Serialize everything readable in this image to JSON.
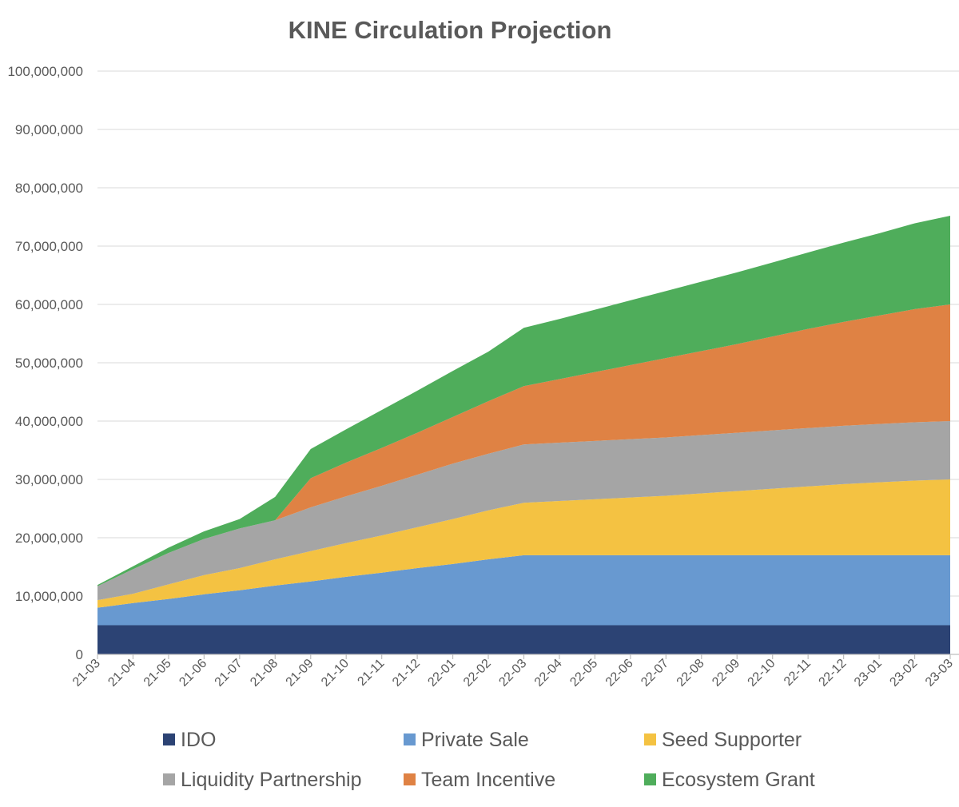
{
  "chart_data": {
    "type": "area",
    "stacked": true,
    "title": "KINE Circulation Projection",
    "xlabel": "",
    "ylabel": "",
    "ylim": [
      0,
      100000000
    ],
    "y_ticks": [
      0,
      10000000,
      20000000,
      30000000,
      40000000,
      50000000,
      60000000,
      70000000,
      80000000,
      90000000,
      100000000
    ],
    "y_tick_labels": [
      "0",
      "10,000,000",
      "20,000,000",
      "30,000,000",
      "40,000,000",
      "50,000,000",
      "60,000,000",
      "70,000,000",
      "80,000,000",
      "90,000,000",
      "100,000,000"
    ],
    "grid": true,
    "legend_position": "bottom",
    "categories": [
      "21-03",
      "21-04",
      "21-05",
      "21-06",
      "21-07",
      "21-08",
      "21-09",
      "21-10",
      "21-11",
      "21-12",
      "22-01",
      "22-02",
      "22-03",
      "22-04",
      "22-05",
      "22-06",
      "22-07",
      "22-08",
      "22-09",
      "22-10",
      "22-11",
      "22-12",
      "23-01",
      "23-02",
      "23-03"
    ],
    "series": [
      {
        "name": "IDO",
        "color": "#2c4374",
        "values": [
          5000000,
          5000000,
          5000000,
          5000000,
          5000000,
          5000000,
          5000000,
          5000000,
          5000000,
          5000000,
          5000000,
          5000000,
          5000000,
          5000000,
          5000000,
          5000000,
          5000000,
          5000000,
          5000000,
          5000000,
          5000000,
          5000000,
          5000000,
          5000000,
          5000000
        ]
      },
      {
        "name": "Private Sale",
        "color": "#6899d0",
        "values": [
          3000000,
          3800000,
          4500000,
          5300000,
          6000000,
          6800000,
          7500000,
          8300000,
          9000000,
          9800000,
          10500000,
          11300000,
          12000000,
          12000000,
          12000000,
          12000000,
          12000000,
          12000000,
          12000000,
          12000000,
          12000000,
          12000000,
          12000000,
          12000000,
          12000000
        ]
      },
      {
        "name": "Seed Supporter",
        "color": "#f4c242",
        "values": [
          1300000,
          1600000,
          2500000,
          3300000,
          3800000,
          4500000,
          5200000,
          5800000,
          6400000,
          7000000,
          7700000,
          8400000,
          9000000,
          9300000,
          9600000,
          9900000,
          10200000,
          10600000,
          11000000,
          11400000,
          11800000,
          12200000,
          12500000,
          12800000,
          13000000
        ]
      },
      {
        "name": "Liquidity Partnership",
        "color": "#a5a5a5",
        "values": [
          2400000,
          4200000,
          5400000,
          6200000,
          6800000,
          6700000,
          7500000,
          8000000,
          8500000,
          9000000,
          9500000,
          9700000,
          10000000,
          10000000,
          10000000,
          10000000,
          10000000,
          10000000,
          10000000,
          10000000,
          10000000,
          10000000,
          10000000,
          10000000,
          10000000
        ]
      },
      {
        "name": "Team Incentive",
        "color": "#df8244",
        "values": [
          0,
          0,
          0,
          0,
          0,
          0,
          5000000,
          5800000,
          6500000,
          7200000,
          8000000,
          9000000,
          10000000,
          10900000,
          11800000,
          12700000,
          13600000,
          14400000,
          15200000,
          16100000,
          17000000,
          17800000,
          18600000,
          19400000,
          20000000
        ]
      },
      {
        "name": "Ecosystem Grant",
        "color": "#4fad5b",
        "values": [
          200000,
          500000,
          900000,
          1300000,
          1600000,
          4000000,
          5000000,
          5700000,
          6500000,
          7200000,
          7900000,
          8500000,
          10000000,
          10300000,
          10700000,
          11100000,
          11500000,
          11900000,
          12300000,
          12700000,
          13100000,
          13600000,
          14100000,
          14700000,
          15200000
        ]
      }
    ]
  }
}
